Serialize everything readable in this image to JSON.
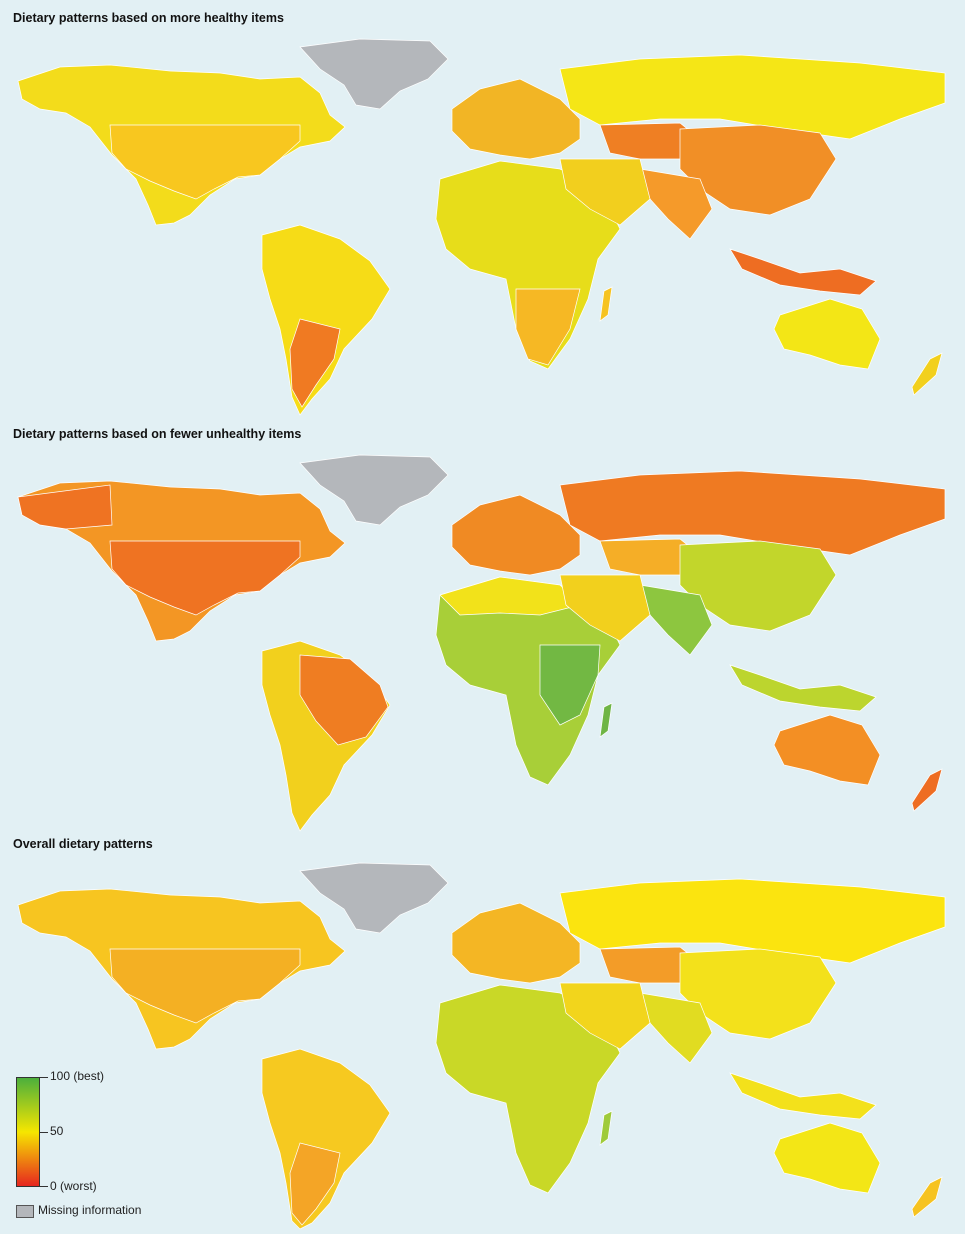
{
  "panels": [
    {
      "title": "Dietary patterns based on more healthy items"
    },
    {
      "title": "Dietary patterns based on fewer unhealthy items"
    },
    {
      "title": "Overall dietary patterns"
    }
  ],
  "legend": {
    "top_label": "100 (best)",
    "mid_label": "50",
    "bottom_label": "0 (worst)",
    "missing_label": "Missing information",
    "colors": {
      "best": "#4caf3c",
      "mid": "#f6e600",
      "worst": "#e6261f",
      "missing": "#b4b7bb",
      "ocean": "#e2f0f4"
    }
  }
}
